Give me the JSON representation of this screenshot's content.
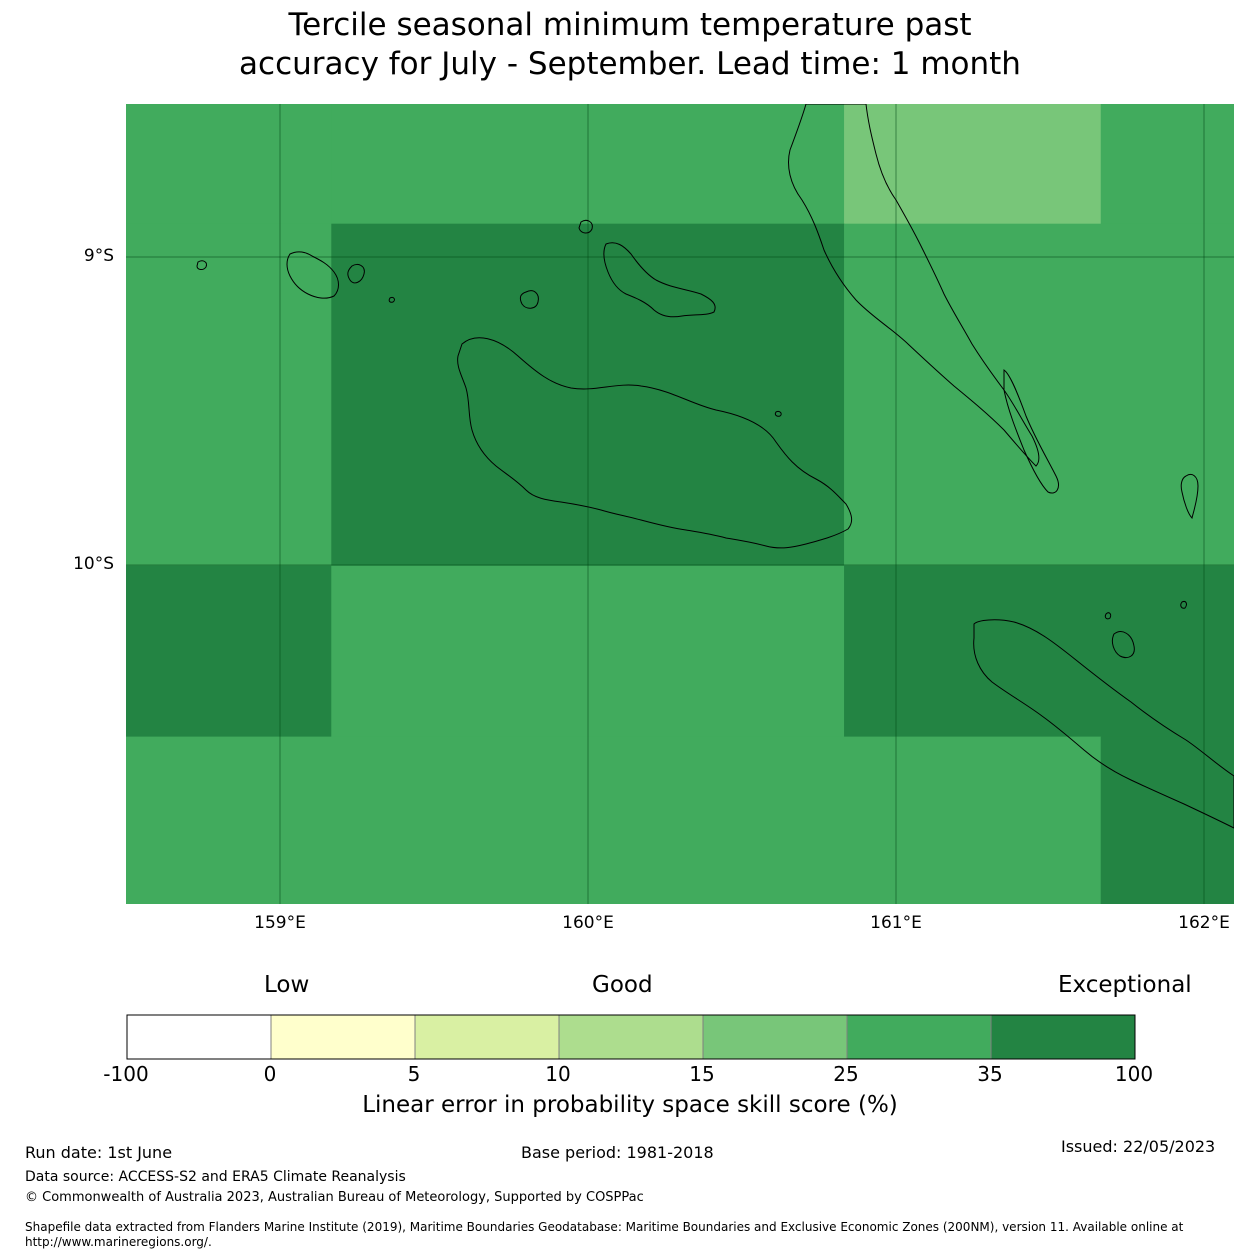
{
  "title": {
    "line1": "Tercile seasonal minimum temperature past",
    "line2": "accuracy for July - September. Lead time: 1 month"
  },
  "axes": {
    "lat_labels": [
      "9°S",
      "10°S"
    ],
    "lon_labels": [
      "159°E",
      "160°E",
      "161°E",
      "162°E"
    ]
  },
  "map": {
    "lon_range": [
      158.5,
      162.1
    ],
    "lat_range": [
      -11.1,
      -8.5
    ],
    "grid_cells": [
      {
        "lon": [
          158.5,
          159.167
        ],
        "lat": [
          -8.5,
          -8.889
        ],
        "category": 6
      },
      {
        "lon": [
          159.167,
          160.833
        ],
        "lat": [
          -8.5,
          -8.889
        ],
        "category": 6
      },
      {
        "lon": [
          160.833,
          161.667
        ],
        "lat": [
          -8.5,
          -8.889
        ],
        "category": 5
      },
      {
        "lon": [
          161.667,
          162.1
        ],
        "lat": [
          -8.5,
          -8.889
        ],
        "category": 6
      },
      {
        "lon": [
          158.5,
          159.167
        ],
        "lat": [
          -8.889,
          -10.0
        ],
        "category": 6
      },
      {
        "lon": [
          159.167,
          160.833
        ],
        "lat": [
          -8.889,
          -10.0
        ],
        "category": 7
      },
      {
        "lon": [
          160.833,
          162.1
        ],
        "lat": [
          -8.889,
          -10.0
        ],
        "category": 6
      },
      {
        "lon": [
          158.5,
          159.167
        ],
        "lat": [
          -10.0,
          -10.556
        ],
        "category": 7
      },
      {
        "lon": [
          159.167,
          160.833
        ],
        "lat": [
          -10.0,
          -10.556
        ],
        "category": 6
      },
      {
        "lon": [
          160.833,
          162.1
        ],
        "lat": [
          -10.0,
          -10.556
        ],
        "category": 7
      },
      {
        "lon": [
          158.5,
          161.667
        ],
        "lat": [
          -10.556,
          -11.1
        ],
        "category": 6
      },
      {
        "lon": [
          161.667,
          162.1
        ],
        "lat": [
          -10.556,
          -11.1
        ],
        "category": 7
      }
    ]
  },
  "legend": {
    "categories": [
      "Low",
      "Good",
      "Exceptional"
    ],
    "ticks": [
      "-100",
      "0",
      "5",
      "10",
      "15",
      "25",
      "35",
      "100"
    ],
    "colors": [
      "#ffffff",
      "#ffffcc",
      "#d9f0a3",
      "#addd8e",
      "#78c679",
      "#41ab5d",
      "#238443"
    ],
    "title": "Linear error in probability space skill score (%)"
  },
  "footer": {
    "run_date": "Run date: 1st June",
    "base_period": "Base period: 1981-2018",
    "issued": "Issued: 22/05/2023",
    "data_source": "Data source: ACCESS-S2 and ERA5 Climate Reanalysis",
    "copyright": "© Commonwealth of Australia 2023, Australian Bureau of Meteorology, Supported by COSPPac",
    "shapefile_line1": "Shapefile data extracted from Flanders Marine Institute (2019), Maritime Boundaries Geodatabase: Maritime Boundaries and Exclusive Economic Zones (200NM), version 11. Available online at",
    "shapefile_line2": "http://www.marineregions.org/."
  }
}
